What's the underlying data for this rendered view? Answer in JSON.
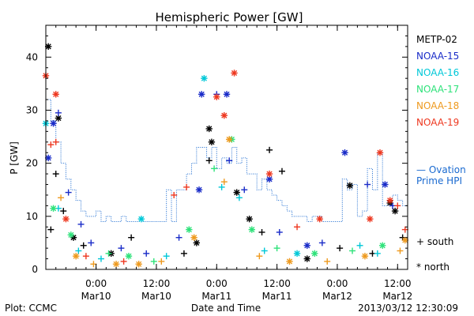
{
  "chart_data": {
    "type": "scatter",
    "title": "Hemispheric Power [GW]",
    "xlabel": "Date and Time",
    "ylabel": "P [GW]",
    "xlim": [
      "2013-03-09T14:00",
      "2013-03-12T14:00"
    ],
    "ylim": [
      0,
      46
    ],
    "grid": false,
    "legend_position": "right",
    "yticks": [
      "0",
      "10",
      "20",
      "30",
      "40"
    ],
    "xticks": [
      {
        "x": "2013-03-10T00:00",
        "time": "0:00",
        "date": "Mar10"
      },
      {
        "x": "2013-03-10T12:00",
        "time": "12:00",
        "date": "Mar10"
      },
      {
        "x": "2013-03-11T00:00",
        "time": "0:00",
        "date": "Mar11"
      },
      {
        "x": "2013-03-11T12:00",
        "time": "12:00",
        "date": "Mar11"
      },
      {
        "x": "2013-03-12T00:00",
        "time": "0:00",
        "date": "Mar12"
      },
      {
        "x": "2013-03-12T12:00",
        "time": "12:00",
        "date": "Mar12"
      }
    ],
    "marker_legend": [
      {
        "label": "+ south",
        "hemisphere": "south"
      },
      {
        "label": "* north",
        "hemisphere": "north"
      }
    ],
    "series": [
      {
        "name": "METP-02",
        "color": "#000000",
        "points": [
          {
            "x": "2013-03-09T14:30",
            "y": 42,
            "m": "north"
          },
          {
            "x": "2013-03-09T16:30",
            "y": 28.5,
            "m": "north"
          },
          {
            "x": "2013-03-09T16:00",
            "y": 18,
            "m": "south"
          },
          {
            "x": "2013-03-09T17:30",
            "y": 11,
            "m": "south"
          },
          {
            "x": "2013-03-09T15:00",
            "y": 7.5,
            "m": "south"
          },
          {
            "x": "2013-03-09T19:30",
            "y": 6,
            "m": "north"
          },
          {
            "x": "2013-03-09T21:30",
            "y": 4.5,
            "m": "south"
          },
          {
            "x": "2013-03-10T03:00",
            "y": 3,
            "m": "north"
          },
          {
            "x": "2013-03-10T07:00",
            "y": 6,
            "m": "south"
          },
          {
            "x": "2013-03-10T17:30",
            "y": 3,
            "m": "south"
          },
          {
            "x": "2013-03-10T20:00",
            "y": 5,
            "m": "north"
          },
          {
            "x": "2013-03-10T22:30",
            "y": 26.5,
            "m": "north"
          },
          {
            "x": "2013-03-10T23:00",
            "y": 24,
            "m": "north"
          },
          {
            "x": "2013-03-10T22:30",
            "y": 20.5,
            "m": "south"
          },
          {
            "x": "2013-03-11T04:00",
            "y": 14.5,
            "m": "north"
          },
          {
            "x": "2013-03-11T06:30",
            "y": 9.5,
            "m": "north"
          },
          {
            "x": "2013-03-11T09:00",
            "y": 7,
            "m": "south"
          },
          {
            "x": "2013-03-11T10:30",
            "y": 22.5,
            "m": "south"
          },
          {
            "x": "2013-03-11T13:00",
            "y": 18.5,
            "m": "south"
          },
          {
            "x": "2013-03-11T18:00",
            "y": 2,
            "m": "north"
          },
          {
            "x": "2013-03-12T00:30",
            "y": 4,
            "m": "south"
          },
          {
            "x": "2013-03-12T02:30",
            "y": 15.8,
            "m": "north"
          },
          {
            "x": "2013-03-12T07:00",
            "y": 3,
            "m": "south"
          },
          {
            "x": "2013-03-12T10:30",
            "y": 12.5,
            "m": "north"
          },
          {
            "x": "2013-03-12T11:30",
            "y": 11,
            "m": "north"
          },
          {
            "x": "2013-03-12T13:00",
            "y": 6,
            "m": "south"
          }
        ]
      },
      {
        "name": "NOAA-15",
        "color": "#1a2cc8",
        "points": [
          {
            "x": "2013-03-09T14:30",
            "y": 21,
            "m": "north"
          },
          {
            "x": "2013-03-09T15:30",
            "y": 27.5,
            "m": "north"
          },
          {
            "x": "2013-03-09T16:30",
            "y": 29.5,
            "m": "south"
          },
          {
            "x": "2013-03-09T18:30",
            "y": 14.5,
            "m": "south"
          },
          {
            "x": "2013-03-09T21:00",
            "y": 8.5,
            "m": "south"
          },
          {
            "x": "2013-03-09T23:00",
            "y": 5,
            "m": "south"
          },
          {
            "x": "2013-03-10T05:00",
            "y": 4,
            "m": "south"
          },
          {
            "x": "2013-03-10T10:00",
            "y": 3,
            "m": "south"
          },
          {
            "x": "2013-03-10T16:30",
            "y": 6,
            "m": "south"
          },
          {
            "x": "2013-03-10T20:30",
            "y": 15,
            "m": "north"
          },
          {
            "x": "2013-03-10T21:00",
            "y": 33,
            "m": "north"
          },
          {
            "x": "2013-03-11T00:00",
            "y": 33,
            "m": "south"
          },
          {
            "x": "2013-03-11T02:00",
            "y": 33,
            "m": "north"
          },
          {
            "x": "2013-03-11T02:30",
            "y": 20.5,
            "m": "south"
          },
          {
            "x": "2013-03-11T05:30",
            "y": 15,
            "m": "south"
          },
          {
            "x": "2013-03-11T10:30",
            "y": 17,
            "m": "north"
          },
          {
            "x": "2013-03-11T12:30",
            "y": 7,
            "m": "south"
          },
          {
            "x": "2013-03-11T18:00",
            "y": 4.5,
            "m": "north"
          },
          {
            "x": "2013-03-11T21:00",
            "y": 5,
            "m": "south"
          },
          {
            "x": "2013-03-12T01:30",
            "y": 22,
            "m": "north"
          },
          {
            "x": "2013-03-12T06:00",
            "y": 16,
            "m": "south"
          },
          {
            "x": "2013-03-12T09:30",
            "y": 16,
            "m": "north"
          },
          {
            "x": "2013-03-12T11:00",
            "y": 12,
            "m": "south"
          }
        ]
      },
      {
        "name": "NOAA-16",
        "color": "#00c8d8",
        "points": [
          {
            "x": "2013-03-09T14:00",
            "y": 27.5,
            "m": "north"
          },
          {
            "x": "2013-03-09T16:30",
            "y": 11.5,
            "m": "south"
          },
          {
            "x": "2013-03-09T20:30",
            "y": 3.5,
            "m": "south"
          },
          {
            "x": "2013-03-10T01:00",
            "y": 2,
            "m": "south"
          },
          {
            "x": "2013-03-10T09:00",
            "y": 9.5,
            "m": "north"
          },
          {
            "x": "2013-03-10T14:00",
            "y": 2.5,
            "m": "south"
          },
          {
            "x": "2013-03-10T21:30",
            "y": 36,
            "m": "north"
          },
          {
            "x": "2013-03-11T01:00",
            "y": 15.5,
            "m": "south"
          },
          {
            "x": "2013-03-11T04:30",
            "y": 13.5,
            "m": "south"
          },
          {
            "x": "2013-03-11T09:30",
            "y": 3.5,
            "m": "south"
          },
          {
            "x": "2013-03-11T16:00",
            "y": 3,
            "m": "north"
          },
          {
            "x": "2013-03-12T04:30",
            "y": 4.5,
            "m": "south"
          },
          {
            "x": "2013-03-12T08:00",
            "y": 3,
            "m": "south"
          }
        ]
      },
      {
        "name": "NOAA-17",
        "color": "#2ee27a",
        "points": [
          {
            "x": "2013-03-09T15:30",
            "y": 11.5,
            "m": "north"
          },
          {
            "x": "2013-03-09T19:00",
            "y": 6.5,
            "m": "north"
          },
          {
            "x": "2013-03-10T02:30",
            "y": 3,
            "m": "south"
          },
          {
            "x": "2013-03-10T06:30",
            "y": 2.5,
            "m": "north"
          },
          {
            "x": "2013-03-10T11:30",
            "y": 1.5,
            "m": "south"
          },
          {
            "x": "2013-03-10T18:30",
            "y": 7.5,
            "m": "north"
          },
          {
            "x": "2013-03-10T23:30",
            "y": 19,
            "m": "south"
          },
          {
            "x": "2013-03-11T03:00",
            "y": 24.5,
            "m": "north"
          },
          {
            "x": "2013-03-11T07:00",
            "y": 7.5,
            "m": "north"
          },
          {
            "x": "2013-03-11T12:00",
            "y": 4,
            "m": "south"
          },
          {
            "x": "2013-03-11T19:30",
            "y": 3,
            "m": "north"
          },
          {
            "x": "2013-03-12T03:00",
            "y": 3.5,
            "m": "south"
          },
          {
            "x": "2013-03-12T09:00",
            "y": 4.5,
            "m": "north"
          }
        ]
      },
      {
        "name": "NOAA-18",
        "color": "#ee9a1f",
        "points": [
          {
            "x": "2013-03-09T17:00",
            "y": 13.5,
            "m": "south"
          },
          {
            "x": "2013-03-09T20:00",
            "y": 2.5,
            "m": "north"
          },
          {
            "x": "2013-03-09T23:30",
            "y": 1,
            "m": "south"
          },
          {
            "x": "2013-03-10T04:00",
            "y": 1,
            "m": "north"
          },
          {
            "x": "2013-03-10T08:30",
            "y": 1,
            "m": "north"
          },
          {
            "x": "2013-03-10T13:00",
            "y": 1.5,
            "m": "south"
          },
          {
            "x": "2013-03-10T19:30",
            "y": 6,
            "m": "north"
          },
          {
            "x": "2013-03-11T01:30",
            "y": 16.5,
            "m": "south"
          },
          {
            "x": "2013-03-11T02:30",
            "y": 24.5,
            "m": "north"
          },
          {
            "x": "2013-03-11T08:30",
            "y": 2.5,
            "m": "south"
          },
          {
            "x": "2013-03-11T14:30",
            "y": 1.5,
            "m": "north"
          },
          {
            "x": "2013-03-11T22:00",
            "y": 1.5,
            "m": "south"
          },
          {
            "x": "2013-03-12T05:30",
            "y": 2.5,
            "m": "north"
          },
          {
            "x": "2013-03-12T12:30",
            "y": 3.5,
            "m": "south"
          },
          {
            "x": "2013-03-12T13:30",
            "y": 5.5,
            "m": "north"
          }
        ]
      },
      {
        "name": "NOAA-19",
        "color": "#ee3820",
        "points": [
          {
            "x": "2013-03-09T14:00",
            "y": 36.5,
            "m": "north"
          },
          {
            "x": "2013-03-09T16:00",
            "y": 33,
            "m": "north"
          },
          {
            "x": "2013-03-09T15:00",
            "y": 23.5,
            "m": "south"
          },
          {
            "x": "2013-03-09T16:00",
            "y": 24,
            "m": "south"
          },
          {
            "x": "2013-03-09T18:00",
            "y": 9.5,
            "m": "north"
          },
          {
            "x": "2013-03-09T22:00",
            "y": 2.5,
            "m": "south"
          },
          {
            "x": "2013-03-10T05:30",
            "y": 1.5,
            "m": "south"
          },
          {
            "x": "2013-03-10T15:30",
            "y": 14,
            "m": "south"
          },
          {
            "x": "2013-03-10T18:00",
            "y": 15.5,
            "m": "south"
          },
          {
            "x": "2013-03-11T00:00",
            "y": 32.5,
            "m": "north"
          },
          {
            "x": "2013-03-11T01:30",
            "y": 29,
            "m": "north"
          },
          {
            "x": "2013-03-11T03:30",
            "y": 37,
            "m": "north"
          },
          {
            "x": "2013-03-11T10:30",
            "y": 18,
            "m": "north"
          },
          {
            "x": "2013-03-11T16:00",
            "y": 8,
            "m": "south"
          },
          {
            "x": "2013-03-11T20:30",
            "y": 9.5,
            "m": "north"
          },
          {
            "x": "2013-03-12T06:30",
            "y": 9.5,
            "m": "north"
          },
          {
            "x": "2013-03-12T08:30",
            "y": 22,
            "m": "north"
          },
          {
            "x": "2013-03-12T10:30",
            "y": 13,
            "m": "north"
          },
          {
            "x": "2013-03-12T12:00",
            "y": 12,
            "m": "south"
          },
          {
            "x": "2013-03-12T13:30",
            "y": 7.5,
            "m": "south"
          }
        ]
      }
    ],
    "reference_line": {
      "name_lines": [
        "— Ovation",
        "Prime HPI"
      ],
      "color": "#1a6ad0",
      "x": [
        "2013-03-09T14:00",
        "2013-03-09T15:00",
        "2013-03-09T16:00",
        "2013-03-09T17:00",
        "2013-03-09T18:00",
        "2013-03-09T19:00",
        "2013-03-09T20:00",
        "2013-03-09T21:00",
        "2013-03-09T22:00",
        "2013-03-09T23:00",
        "2013-03-10T00:00",
        "2013-03-10T01:00",
        "2013-03-10T02:00",
        "2013-03-10T03:00",
        "2013-03-10T04:00",
        "2013-03-10T05:00",
        "2013-03-10T06:00",
        "2013-03-10T07:00",
        "2013-03-10T08:00",
        "2013-03-10T09:00",
        "2013-03-10T10:00",
        "2013-03-10T11:00",
        "2013-03-10T12:00",
        "2013-03-10T13:00",
        "2013-03-10T14:00",
        "2013-03-10T15:00",
        "2013-03-10T16:00",
        "2013-03-10T17:00",
        "2013-03-10T18:00",
        "2013-03-10T19:00",
        "2013-03-10T20:00",
        "2013-03-10T21:00",
        "2013-03-10T22:00",
        "2013-03-10T23:00",
        "2013-03-11T00:00",
        "2013-03-11T01:00",
        "2013-03-11T02:00",
        "2013-03-11T03:00",
        "2013-03-11T04:00",
        "2013-03-11T05:00",
        "2013-03-11T06:00",
        "2013-03-11T07:00",
        "2013-03-11T08:00",
        "2013-03-11T09:00",
        "2013-03-11T10:00",
        "2013-03-11T11:00",
        "2013-03-11T12:00",
        "2013-03-11T13:00",
        "2013-03-11T14:00",
        "2013-03-11T15:00",
        "2013-03-11T16:00",
        "2013-03-11T17:00",
        "2013-03-11T18:00",
        "2013-03-11T19:00",
        "2013-03-11T20:00",
        "2013-03-11T21:00",
        "2013-03-11T22:00",
        "2013-03-11T23:00",
        "2013-03-12T00:00",
        "2013-03-12T01:00",
        "2013-03-12T02:00",
        "2013-03-12T03:00",
        "2013-03-12T04:00",
        "2013-03-12T05:00",
        "2013-03-12T06:00",
        "2013-03-12T07:00",
        "2013-03-12T08:00",
        "2013-03-12T09:00",
        "2013-03-12T10:00",
        "2013-03-12T11:00",
        "2013-03-12T12:00",
        "2013-03-12T13:00"
      ],
      "y": [
        32,
        28,
        24,
        20,
        17,
        15,
        13,
        11,
        10,
        10,
        11,
        9,
        10,
        9,
        9,
        10,
        9,
        9,
        9,
        9,
        9,
        9,
        9,
        9,
        15,
        9,
        15,
        15,
        18,
        20,
        23,
        23,
        21,
        23,
        19,
        21,
        20,
        23,
        20,
        21,
        18,
        18,
        15,
        17,
        15,
        14,
        13,
        12,
        11,
        10,
        10,
        10,
        9,
        10,
        10,
        9,
        9,
        9,
        9,
        17,
        15,
        16,
        10,
        11,
        19,
        15,
        22,
        12,
        13,
        14,
        13,
        12
      ]
    }
  },
  "footer": {
    "plot_credit": "Plot: CCMC",
    "timestamp": "2013/03/12 12:30:09"
  }
}
